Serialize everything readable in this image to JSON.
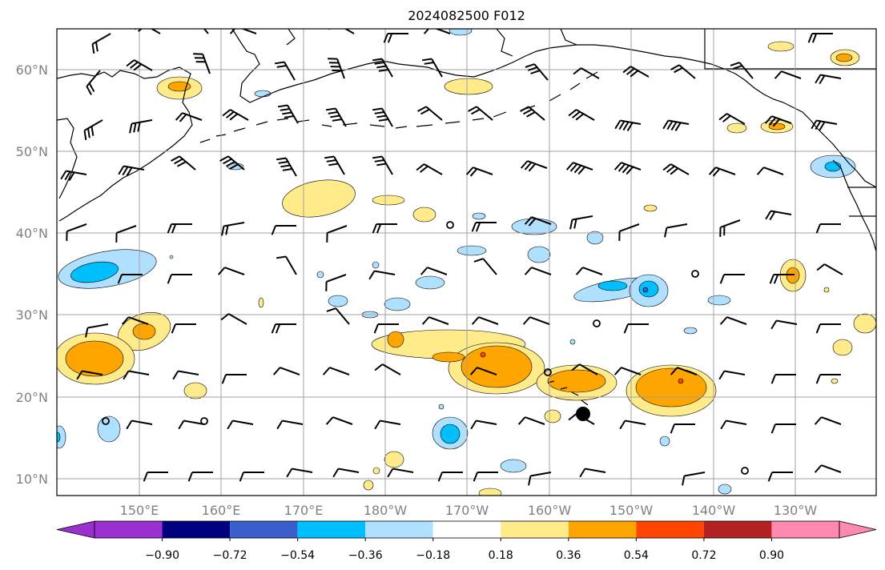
{
  "title": "2024082500 F012",
  "lat_labels": [
    "10°N",
    "20°N",
    "30°N",
    "40°N",
    "50°N",
    "60°N"
  ],
  "lon_labels": [
    "150°E",
    "160°E",
    "170°E",
    "180°W",
    "170°W",
    "160°W",
    "150°W",
    "140°W",
    "130°W"
  ],
  "colorbar": {
    "tick_labels": [
      "−0.90",
      "−0.72",
      "−0.54",
      "−0.36",
      "−0.18",
      "0.18",
      "0.36",
      "0.54",
      "0.72",
      "0.90"
    ],
    "colors": [
      "#9b30d0",
      "#000080",
      "#3a5fcd",
      "#00bfff",
      "#b0e0ff",
      "#ffffff",
      "#ffeb8a",
      "#ffa500",
      "#ff4500",
      "#b22222",
      "#ff89b0"
    ]
  },
  "colors": {
    "coast": "#000000",
    "grid": "#a0a0a0",
    "axis_label": "#808080",
    "light_blue": "#b0e0ff",
    "mid_blue": "#00bfff",
    "deep_blue": "#3a5fcd",
    "yellow": "#ffeb8a",
    "orange": "#ffa500",
    "red": "#ff4500"
  }
}
